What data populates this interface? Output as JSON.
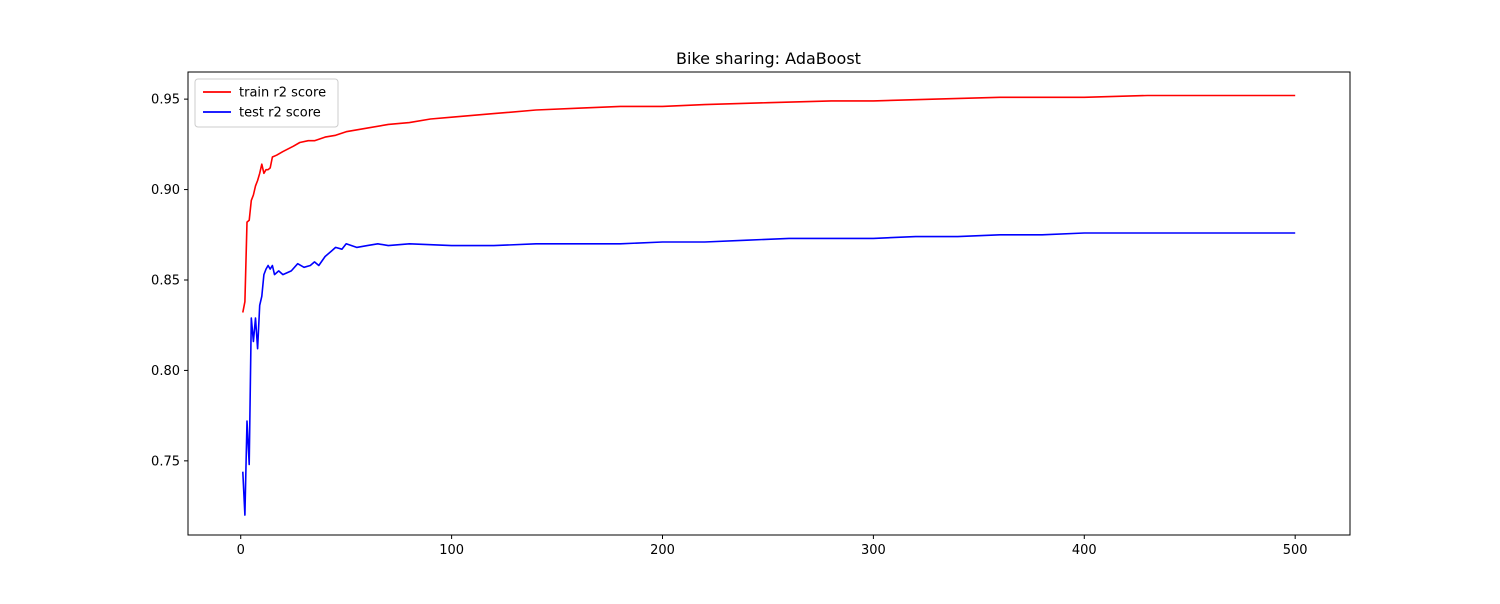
{
  "chart_data": {
    "type": "line",
    "title": "Bike sharing: AdaBoost",
    "xlabel": "",
    "ylabel": "",
    "xlim": [
      -25,
      526
    ],
    "ylim": [
      0.709,
      0.965
    ],
    "xticks": [
      0,
      100,
      200,
      300,
      400,
      500
    ],
    "xtick_labels": [
      "0",
      "100",
      "200",
      "300",
      "400",
      "500"
    ],
    "yticks": [
      0.75,
      0.8,
      0.85,
      0.9,
      0.95
    ],
    "ytick_labels": [
      "0.75",
      "0.80",
      "0.85",
      "0.90",
      "0.95"
    ],
    "grid": false,
    "legend": "top-left",
    "series": [
      {
        "name": "train r2 score",
        "color": "#ff0000",
        "points": [
          [
            1,
            0.832
          ],
          [
            2,
            0.838
          ],
          [
            3,
            0.882
          ],
          [
            4,
            0.883
          ],
          [
            5,
            0.894
          ],
          [
            6,
            0.897
          ],
          [
            7,
            0.902
          ],
          [
            8,
            0.905
          ],
          [
            9,
            0.909
          ],
          [
            10,
            0.914
          ],
          [
            11,
            0.909
          ],
          [
            12,
            0.911
          ],
          [
            13,
            0.911
          ],
          [
            14,
            0.912
          ],
          [
            15,
            0.918
          ],
          [
            17,
            0.919
          ],
          [
            20,
            0.921
          ],
          [
            25,
            0.924
          ],
          [
            28,
            0.926
          ],
          [
            32,
            0.927
          ],
          [
            35,
            0.927
          ],
          [
            40,
            0.929
          ],
          [
            45,
            0.93
          ],
          [
            50,
            0.932
          ],
          [
            60,
            0.934
          ],
          [
            70,
            0.936
          ],
          [
            80,
            0.937
          ],
          [
            90,
            0.939
          ],
          [
            100,
            0.94
          ],
          [
            120,
            0.942
          ],
          [
            140,
            0.944
          ],
          [
            160,
            0.945
          ],
          [
            180,
            0.946
          ],
          [
            200,
            0.946
          ],
          [
            220,
            0.947
          ],
          [
            250,
            0.948
          ],
          [
            280,
            0.949
          ],
          [
            300,
            0.949
          ],
          [
            330,
            0.95
          ],
          [
            360,
            0.951
          ],
          [
            400,
            0.951
          ],
          [
            430,
            0.952
          ],
          [
            460,
            0.952
          ],
          [
            500,
            0.952
          ]
        ]
      },
      {
        "name": "test r2 score",
        "color": "#0000ff",
        "points": [
          [
            1,
            0.744
          ],
          [
            2,
            0.72
          ],
          [
            3,
            0.772
          ],
          [
            4,
            0.748
          ],
          [
            5,
            0.829
          ],
          [
            6,
            0.816
          ],
          [
            7,
            0.829
          ],
          [
            8,
            0.812
          ],
          [
            9,
            0.836
          ],
          [
            10,
            0.841
          ],
          [
            11,
            0.853
          ],
          [
            12,
            0.856
          ],
          [
            13,
            0.858
          ],
          [
            14,
            0.856
          ],
          [
            15,
            0.858
          ],
          [
            16,
            0.853
          ],
          [
            18,
            0.855
          ],
          [
            20,
            0.853
          ],
          [
            24,
            0.855
          ],
          [
            27,
            0.859
          ],
          [
            30,
            0.857
          ],
          [
            33,
            0.858
          ],
          [
            35,
            0.86
          ],
          [
            37,
            0.858
          ],
          [
            40,
            0.863
          ],
          [
            43,
            0.866
          ],
          [
            45,
            0.868
          ],
          [
            48,
            0.867
          ],
          [
            50,
            0.87
          ],
          [
            55,
            0.868
          ],
          [
            60,
            0.869
          ],
          [
            65,
            0.87
          ],
          [
            70,
            0.869
          ],
          [
            80,
            0.87
          ],
          [
            100,
            0.869
          ],
          [
            120,
            0.869
          ],
          [
            140,
            0.87
          ],
          [
            160,
            0.87
          ],
          [
            180,
            0.87
          ],
          [
            200,
            0.871
          ],
          [
            220,
            0.871
          ],
          [
            240,
            0.872
          ],
          [
            260,
            0.873
          ],
          [
            280,
            0.873
          ],
          [
            300,
            0.873
          ],
          [
            320,
            0.874
          ],
          [
            340,
            0.874
          ],
          [
            360,
            0.875
          ],
          [
            380,
            0.875
          ],
          [
            400,
            0.876
          ],
          [
            420,
            0.876
          ],
          [
            440,
            0.876
          ],
          [
            460,
            0.876
          ],
          [
            480,
            0.876
          ],
          [
            500,
            0.876
          ]
        ]
      }
    ]
  }
}
